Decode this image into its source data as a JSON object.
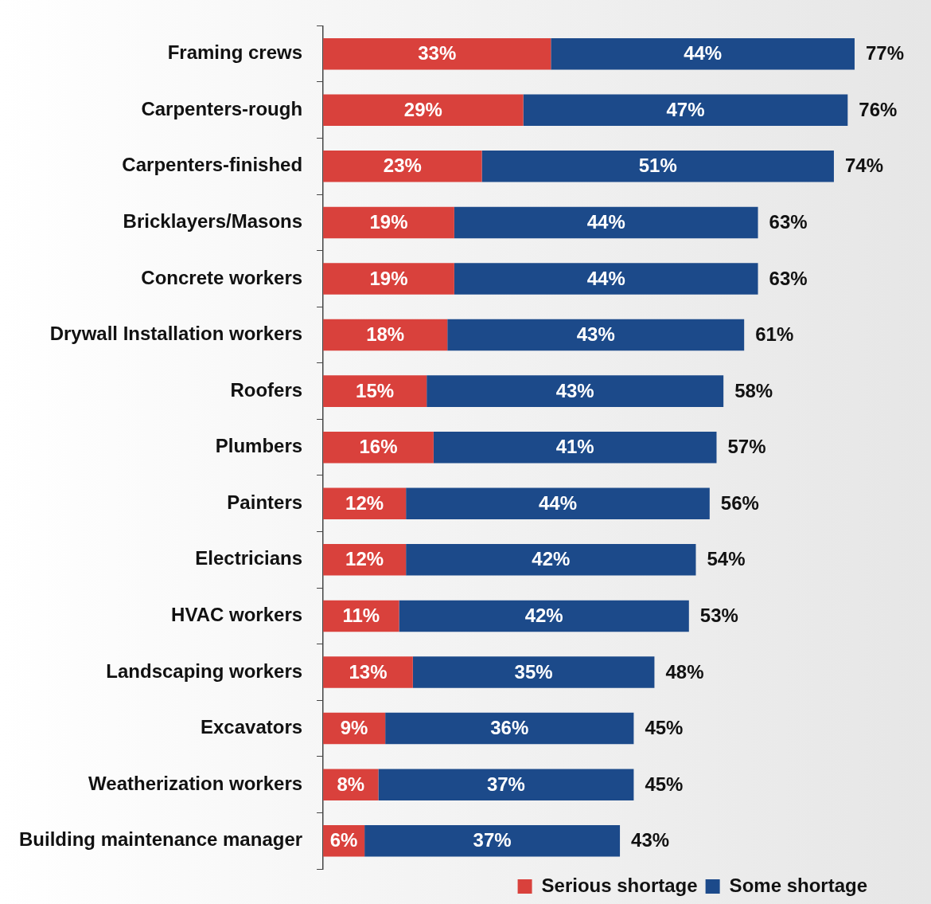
{
  "chart_data": {
    "type": "bar",
    "orientation": "horizontal",
    "stacked": true,
    "categories": [
      "Framing crews",
      "Carpenters-rough",
      "Carpenters-finished",
      "Bricklayers/Masons",
      "Concrete workers",
      "Drywall Installation workers",
      "Roofers",
      "Plumbers",
      "Painters",
      "Electricians",
      "HVAC workers",
      "Landscaping workers",
      "Excavators",
      "Weatherization workers",
      "Building maintenance manager"
    ],
    "series": [
      {
        "name": "Serious shortage",
        "color": "#d9413c",
        "values": [
          33,
          29,
          23,
          19,
          19,
          18,
          15,
          16,
          12,
          12,
          11,
          13,
          9,
          8,
          6
        ],
        "value_labels": [
          "33%",
          "29%",
          "23%",
          "19%",
          "19%",
          "18%",
          "15%",
          "16%",
          "12%",
          "12%",
          "11%",
          "13%",
          "9%",
          "8%",
          "6%"
        ]
      },
      {
        "name": "Some shortage",
        "color": "#1c4a8a",
        "values": [
          44,
          47,
          51,
          44,
          44,
          43,
          43,
          41,
          44,
          42,
          42,
          35,
          36,
          37,
          37
        ],
        "value_labels": [
          "44%",
          "47%",
          "51%",
          "44%",
          "44%",
          "43%",
          "43%",
          "41%",
          "44%",
          "42%",
          "42%",
          "35%",
          "36%",
          "37%",
          "37%"
        ]
      }
    ],
    "totals": [
      "77%",
      "76%",
      "74%",
      "63%",
      "63%",
      "61%",
      "58%",
      "57%",
      "56%",
      "54%",
      "53%",
      "48%",
      "45%",
      "45%",
      "43%"
    ],
    "legend": "bottom right",
    "grid": false,
    "tick_labels": "y"
  }
}
